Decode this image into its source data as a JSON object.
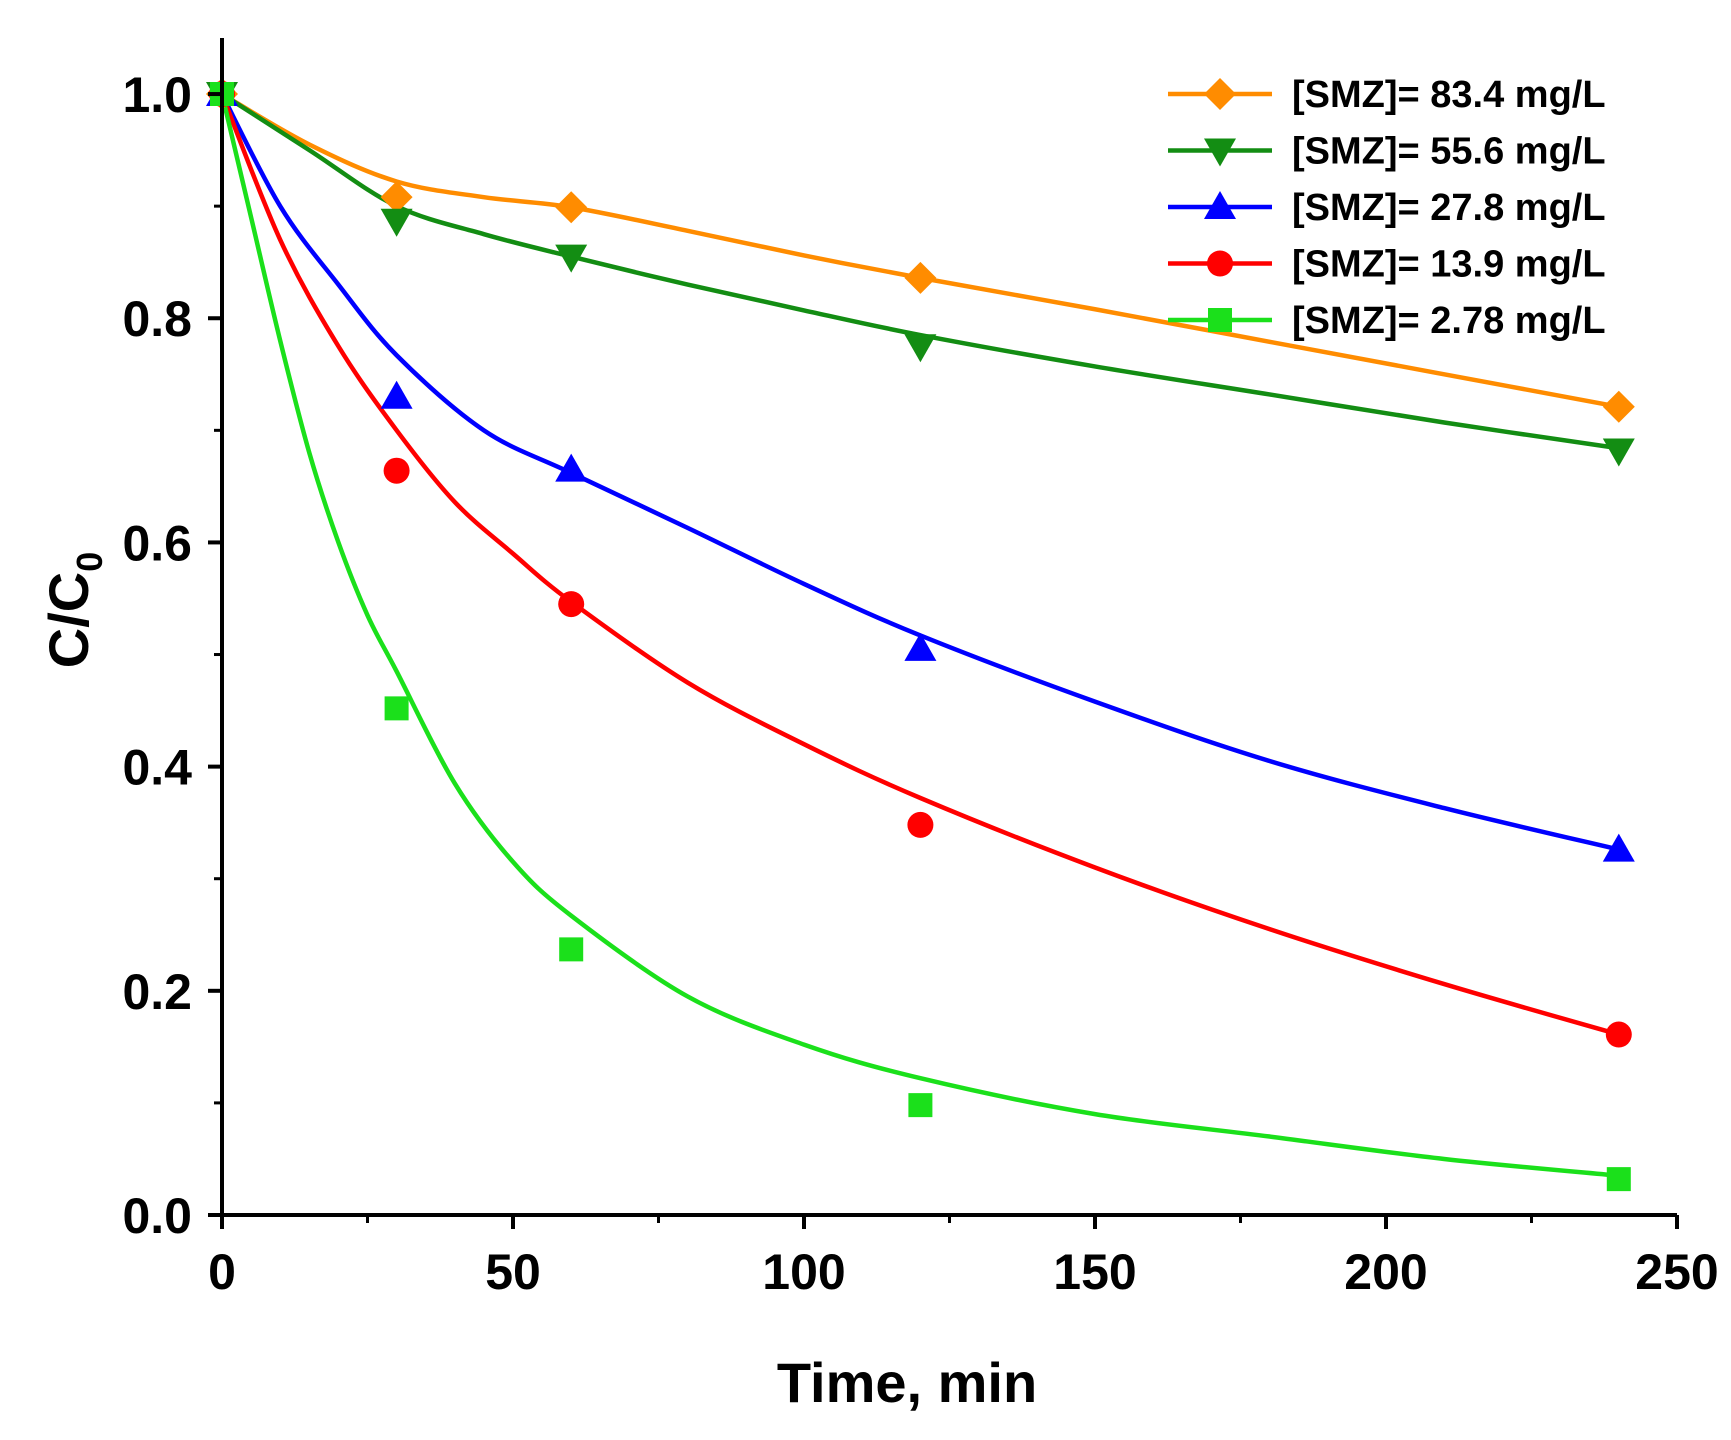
{
  "chart_data": {
    "type": "scatter",
    "xlabel": "Time, min",
    "ylabel": "C/C",
    "ylabel_sub": "0",
    "xlim": [
      0,
      250
    ],
    "ylim": [
      0,
      1.05
    ],
    "xticks": [
      0,
      50,
      100,
      150,
      200,
      250
    ],
    "xtick_labels": [
      "0",
      "50",
      "100",
      "150",
      "200",
      "250"
    ],
    "yticks": [
      0.0,
      0.2,
      0.4,
      0.6,
      0.8,
      1.0
    ],
    "ytick_labels": [
      "0.0",
      "0.2",
      "0.4",
      "0.6",
      "0.8",
      "1.0"
    ],
    "grid": false,
    "legend_position": "top-right",
    "x": [
      0,
      30,
      60,
      120,
      240
    ],
    "series": [
      {
        "name": "[SMZ]= 83.4 mg/L",
        "color": "#ff8c00",
        "marker": "diamond",
        "values": [
          1.0,
          0.908,
          0.899,
          0.836,
          0.721
        ],
        "fit": [
          [
            0,
            1.0
          ],
          [
            15,
            0.955
          ],
          [
            30,
            0.922
          ],
          [
            45,
            0.908
          ],
          [
            60,
            0.899
          ],
          [
            80,
            0.878
          ],
          [
            100,
            0.856
          ],
          [
            120,
            0.836
          ],
          [
            150,
            0.808
          ],
          [
            180,
            0.779
          ],
          [
            210,
            0.75
          ],
          [
            240,
            0.721
          ]
        ]
      },
      {
        "name": "[SMZ]= 55.6 mg/L",
        "color": "#138d13",
        "marker": "triangle-down",
        "values": [
          1.0,
          0.887,
          0.855,
          0.775,
          0.682
        ],
        "fit": [
          [
            0,
            1.0
          ],
          [
            15,
            0.95
          ],
          [
            30,
            0.9
          ],
          [
            45,
            0.875
          ],
          [
            60,
            0.855
          ],
          [
            80,
            0.83
          ],
          [
            100,
            0.807
          ],
          [
            120,
            0.785
          ],
          [
            150,
            0.757
          ],
          [
            180,
            0.732
          ],
          [
            210,
            0.707
          ],
          [
            240,
            0.684
          ]
        ]
      },
      {
        "name": "[SMZ]= 27.8 mg/L",
        "color": "#0000ff",
        "marker": "triangle-up",
        "values": [
          1.0,
          0.73,
          0.665,
          0.505,
          0.326
        ],
        "fit": [
          [
            0,
            1.0
          ],
          [
            10,
            0.9
          ],
          [
            20,
            0.83
          ],
          [
            30,
            0.767
          ],
          [
            45,
            0.7
          ],
          [
            60,
            0.662
          ],
          [
            80,
            0.613
          ],
          [
            100,
            0.563
          ],
          [
            120,
            0.517
          ],
          [
            150,
            0.458
          ],
          [
            180,
            0.405
          ],
          [
            210,
            0.363
          ],
          [
            240,
            0.326
          ]
        ]
      },
      {
        "name": "[SMZ]= 13.9 mg/L",
        "color": "#ff0000",
        "marker": "circle",
        "values": [
          1.0,
          0.664,
          0.545,
          0.348,
          0.161
        ],
        "fit": [
          [
            0,
            1.0
          ],
          [
            10,
            0.87
          ],
          [
            20,
            0.775
          ],
          [
            30,
            0.7
          ],
          [
            40,
            0.636
          ],
          [
            50,
            0.59
          ],
          [
            60,
            0.547
          ],
          [
            80,
            0.475
          ],
          [
            100,
            0.42
          ],
          [
            120,
            0.372
          ],
          [
            150,
            0.31
          ],
          [
            180,
            0.255
          ],
          [
            210,
            0.206
          ],
          [
            240,
            0.161
          ]
        ]
      },
      {
        "name": "[SMZ]= 2.78 mg/L",
        "color": "#1be01b",
        "marker": "square",
        "values": [
          1.0,
          0.452,
          0.237,
          0.098,
          0.032
        ],
        "fit": [
          [
            0,
            1.0
          ],
          [
            5,
            0.89
          ],
          [
            10,
            0.78
          ],
          [
            15,
            0.68
          ],
          [
            20,
            0.6
          ],
          [
            25,
            0.535
          ],
          [
            30,
            0.485
          ],
          [
            40,
            0.385
          ],
          [
            50,
            0.315
          ],
          [
            60,
            0.267
          ],
          [
            80,
            0.195
          ],
          [
            100,
            0.152
          ],
          [
            120,
            0.122
          ],
          [
            150,
            0.09
          ],
          [
            180,
            0.07
          ],
          [
            210,
            0.05
          ],
          [
            240,
            0.035
          ]
        ]
      }
    ]
  }
}
